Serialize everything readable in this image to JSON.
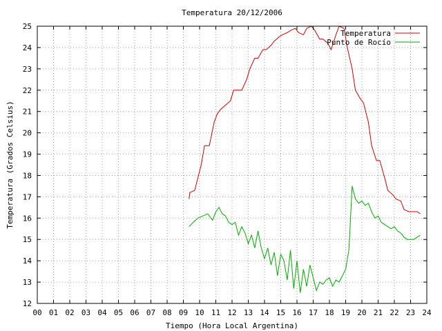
{
  "chart_data": {
    "type": "line",
    "title": "Temperatura 20/12/2006",
    "xlabel": "Tiempo (Hora Local Argentina)",
    "ylabel": "Temperatura (Grados Celsius)",
    "xlim": [
      0,
      24
    ],
    "ylim": [
      12,
      25
    ],
    "x_tick_labels": [
      "00",
      "01",
      "02",
      "03",
      "04",
      "05",
      "06",
      "07",
      "08",
      "09",
      "10",
      "11",
      "12",
      "13",
      "14",
      "15",
      "16",
      "17",
      "18",
      "19",
      "20",
      "21",
      "22",
      "23",
      "24"
    ],
    "y_ticks": [
      12,
      13,
      14,
      15,
      16,
      17,
      18,
      19,
      20,
      21,
      22,
      23,
      24,
      25
    ],
    "grid": true,
    "legend_position": "top-right",
    "series": [
      {
        "name": "Temperatura",
        "color": "#cc0000",
        "x": [
          9.35,
          9.4,
          9.7,
          9.9,
          10.1,
          10.3,
          10.6,
          10.9,
          11.1,
          11.3,
          11.6,
          11.9,
          12.1,
          12.3,
          12.6,
          12.9,
          13.1,
          13.4,
          13.6,
          13.9,
          14.1,
          14.4,
          14.6,
          14.9,
          15.1,
          15.4,
          15.6,
          15.9,
          16.1,
          16.4,
          16.6,
          16.9,
          17.1,
          17.4,
          17.6,
          17.9,
          18.1,
          18.4,
          18.6,
          18.9,
          19.1,
          19.4,
          19.6,
          19.9,
          20.1,
          20.4,
          20.6,
          20.9,
          21.1,
          21.4,
          21.6,
          21.9,
          22.1,
          22.4,
          22.6,
          22.9,
          23.1,
          23.4,
          23.6
        ],
        "values": [
          16.9,
          17.2,
          17.3,
          17.9,
          18.5,
          19.4,
          19.4,
          20.5,
          20.9,
          21.1,
          21.3,
          21.5,
          22.0,
          22.0,
          22.0,
          22.5,
          23.0,
          23.5,
          23.5,
          23.9,
          23.9,
          24.1,
          24.3,
          24.5,
          24.6,
          24.7,
          24.8,
          24.9,
          24.7,
          24.6,
          24.9,
          25.0,
          24.8,
          24.4,
          24.4,
          24.2,
          23.9,
          24.6,
          25.0,
          24.9,
          24.0,
          23.0,
          22.0,
          21.6,
          21.4,
          20.5,
          19.4,
          18.7,
          18.7,
          17.9,
          17.3,
          17.1,
          16.9,
          16.8,
          16.4,
          16.3,
          16.3,
          16.3,
          16.2
        ]
      },
      {
        "name": "Punto de Rocío",
        "color": "#00aa00",
        "x": [
          9.35,
          9.6,
          9.9,
          10.2,
          10.5,
          10.8,
          11.0,
          11.2,
          11.4,
          11.6,
          11.8,
          12.0,
          12.2,
          12.4,
          12.6,
          12.8,
          13.0,
          13.2,
          13.4,
          13.6,
          13.8,
          14.0,
          14.2,
          14.4,
          14.6,
          14.8,
          15.0,
          15.2,
          15.4,
          15.6,
          15.8,
          16.0,
          16.2,
          16.4,
          16.6,
          16.8,
          17.0,
          17.2,
          17.4,
          17.6,
          17.8,
          18.0,
          18.2,
          18.4,
          18.6,
          18.8,
          19.0,
          19.2,
          19.4,
          19.6,
          19.8,
          20.0,
          20.2,
          20.4,
          20.6,
          20.8,
          21.0,
          21.2,
          21.4,
          21.6,
          21.8,
          22.0,
          22.2,
          22.4,
          22.6,
          22.8,
          23.0,
          23.2,
          23.4,
          23.6
        ],
        "values": [
          15.6,
          15.8,
          16.0,
          16.1,
          16.2,
          15.9,
          16.3,
          16.5,
          16.2,
          16.1,
          15.8,
          15.7,
          15.8,
          15.2,
          15.6,
          15.3,
          14.8,
          15.2,
          14.6,
          15.4,
          14.6,
          14.1,
          14.6,
          13.8,
          14.4,
          13.3,
          14.3,
          14.0,
          13.1,
          14.5,
          12.7,
          14.0,
          12.5,
          13.6,
          12.8,
          13.8,
          13.2,
          12.6,
          13.0,
          12.9,
          13.1,
          13.2,
          12.8,
          13.1,
          13.0,
          13.3,
          13.6,
          14.5,
          17.5,
          16.9,
          16.7,
          16.8,
          16.6,
          16.7,
          16.3,
          16.0,
          16.1,
          15.8,
          15.7,
          15.6,
          15.5,
          15.6,
          15.4,
          15.3,
          15.1,
          15.0,
          15.0,
          15.0,
          15.1,
          15.2
        ]
      }
    ]
  }
}
